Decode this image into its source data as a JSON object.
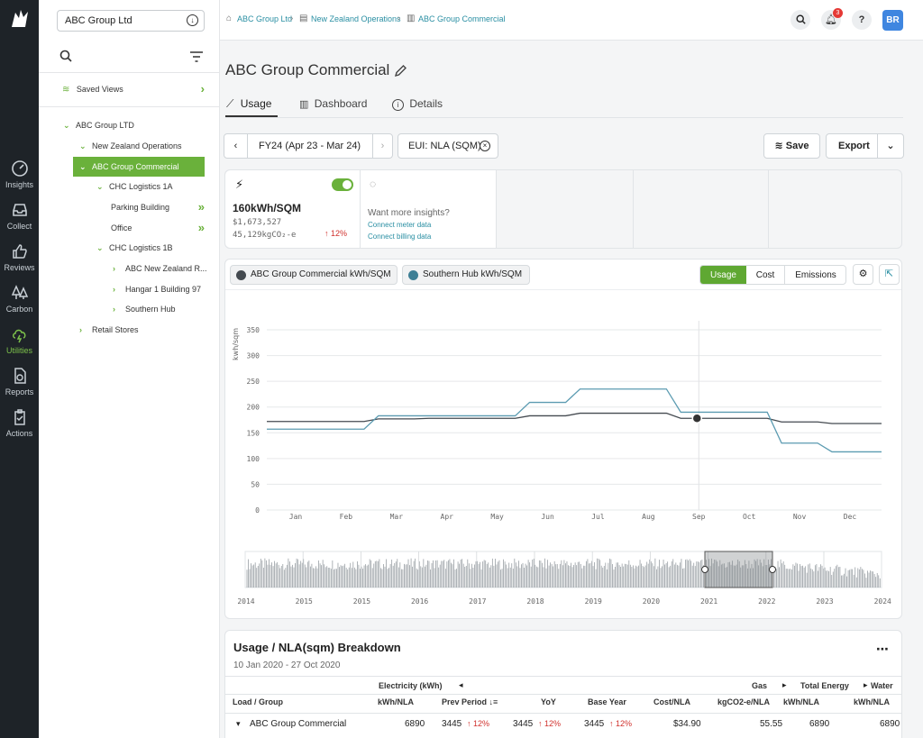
{
  "rail": {
    "items": [
      {
        "label": "Insights",
        "icon": "gauge-icon"
      },
      {
        "label": "Collect",
        "icon": "inbox-icon"
      },
      {
        "label": "Reviews",
        "icon": "thumbs-up-icon"
      },
      {
        "label": "Carbon",
        "icon": "trees-icon"
      },
      {
        "label": "Utilities",
        "icon": "cloud-bolt-icon"
      },
      {
        "label": "Reports",
        "icon": "report-icon"
      },
      {
        "label": "Actions",
        "icon": "clipboard-check-icon"
      }
    ],
    "active": "Utilities"
  },
  "tree": {
    "org_select": "ABC Group Ltd",
    "saved_views": "Saved Views",
    "nodes": [
      {
        "label": "ABC Group LTD"
      },
      {
        "label": "New Zealand Operations"
      },
      {
        "label": "ABC Group Commercial"
      },
      {
        "label": "CHC Logistics 1A"
      },
      {
        "label": "Parking Building"
      },
      {
        "label": "Office"
      },
      {
        "label": "CHC Logistics 1B"
      },
      {
        "label": "ABC New Zealand R..."
      },
      {
        "label": "Hangar 1 Building 97"
      },
      {
        "label": "Southern Hub"
      },
      {
        "label": "Retail Stores"
      }
    ]
  },
  "breadcrumb": [
    "ABC Group Ltd",
    "New Zealand Operations",
    "ABC Group Commercial"
  ],
  "header": {
    "notifications": "3",
    "help": "?",
    "avatar": "BR"
  },
  "page": {
    "title": "ABC Group Commercial",
    "tabs": [
      "Usage",
      "Dashboard",
      "Details"
    ],
    "period": "FY24 (Apr 23 - Mar 24)",
    "eui": "EUI: NLA (SQM)",
    "save": "Save",
    "export": "Export"
  },
  "kpi": {
    "value": "160kWh/SQM",
    "cost": "$1,673,527",
    "emissions": "45,129kgCO₂-e",
    "change": "↑ 12%",
    "insight_title": "Want more insights?",
    "link_meter": "Connect meter data",
    "link_billing": "Connect billing data"
  },
  "legend": [
    "ABC Group Commercial kWh/SQM",
    "Southern Hub kWh/SQM"
  ],
  "chart_modes": [
    "Usage",
    "Cost",
    "Emissions"
  ],
  "chart_data": {
    "type": "line",
    "ylabel": "kwh/sqm",
    "ylim": [
      0,
      350
    ],
    "yticks": [
      0,
      50,
      100,
      150,
      200,
      250,
      300,
      350
    ],
    "categories": [
      "Jan",
      "Feb",
      "Mar",
      "Apr",
      "May",
      "Jun",
      "Jul",
      "Aug",
      "Sep",
      "Oct",
      "Nov",
      "Dec"
    ],
    "series": [
      {
        "name": "ABC Group Commercial kWh/SQM",
        "color": "#444a50",
        "values": [
          172,
          172,
          177,
          178,
          178,
          183,
          188,
          188,
          178,
          178,
          171,
          168
        ]
      },
      {
        "name": "Southern Hub kWh/SQM",
        "color": "#5b9bb1",
        "values": [
          157,
          157,
          183,
          183,
          183,
          209,
          235,
          235,
          190,
          190,
          130,
          113
        ]
      }
    ],
    "navigator_years": [
      "2014",
      "2015",
      "2015",
      "2016",
      "2017",
      "2018",
      "2019",
      "2020",
      "2021",
      "2022",
      "2023",
      "2024"
    ]
  },
  "breakdown": {
    "title": "Usage / NLA(sqm) Breakdown",
    "range": "10 Jan 2020 - 27 Oct 2020",
    "group_headers": {
      "electricity": "Electricity (kWh)",
      "gas": "Gas",
      "total": "Total Energy",
      "water": "Water"
    },
    "columns": [
      "Load  / Group",
      "kWh/NLA",
      "Prev Period",
      "YoY",
      "Base Year",
      "Cost/NLA",
      "kgCO2-e/NLA",
      "kWh/NLA",
      "kWh/NLA"
    ],
    "row": {
      "name": "ABC Group Commercial",
      "kwh": "6890",
      "prev": "3445",
      "prev_chg": "↑ 12%",
      "yoy": "3445",
      "yoy_chg": "↑ 12%",
      "base": "3445",
      "base_chg": "↑ 12%",
      "cost": "$34.90",
      "co2": "55.55",
      "total": "6890",
      "water": "6890"
    }
  }
}
